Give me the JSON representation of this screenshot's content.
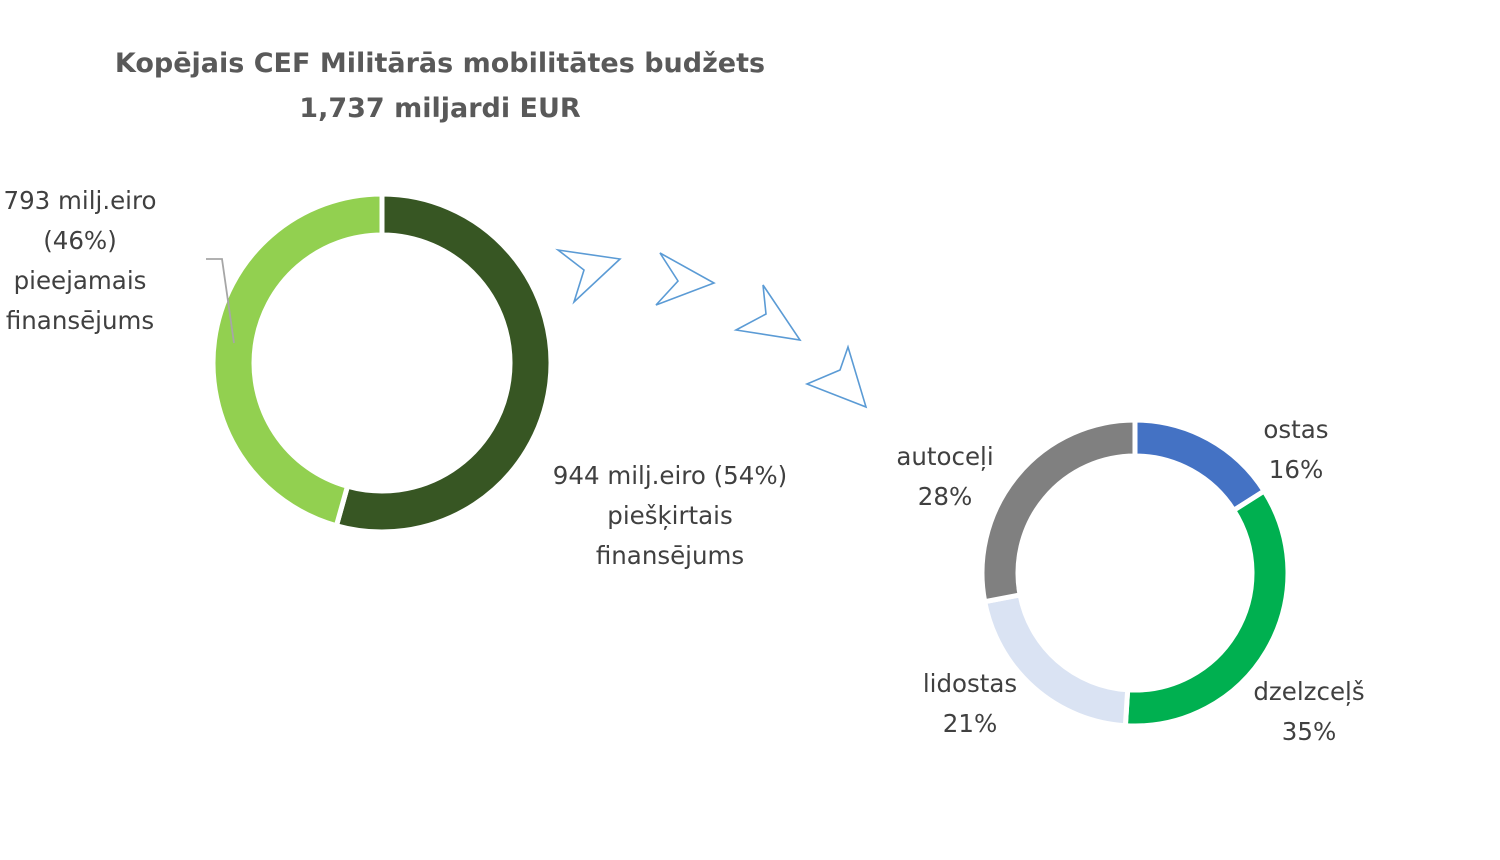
{
  "chart_data": [
    {
      "type": "pie",
      "title": "Kopējais CEF Militārās mobilitātes budžets",
      "subtitle": "1,737 miljardi EUR",
      "slices": [
        {
          "value": 944,
          "percent": 54,
          "label_lines": [
            "944 milj.eiro (54%)",
            "piešķirtais",
            "finansējums"
          ],
          "color": "#375623"
        },
        {
          "value": 793,
          "percent": 46,
          "label_lines": [
            "793 milj.eiro",
            "(46%)",
            "pieejamais",
            "finansējums"
          ],
          "color": "#92d050"
        }
      ]
    },
    {
      "type": "pie",
      "slices": [
        {
          "name": "ostas",
          "percent": 16,
          "percent_label": "16%",
          "color": "#4472c4"
        },
        {
          "name": "dzelzceļš",
          "percent": 35,
          "percent_label": "35%",
          "color": "#00b050"
        },
        {
          "name": "lidostas",
          "percent": 21,
          "percent_label": "21%",
          "color": "#dae3f3"
        },
        {
          "name": "autoceļi",
          "percent": 28,
          "percent_label": "28%",
          "color": "#808080"
        }
      ]
    }
  ],
  "colors": {
    "arrow_stroke": "#5b9bd5",
    "leader_line": "#a6a6a6"
  }
}
